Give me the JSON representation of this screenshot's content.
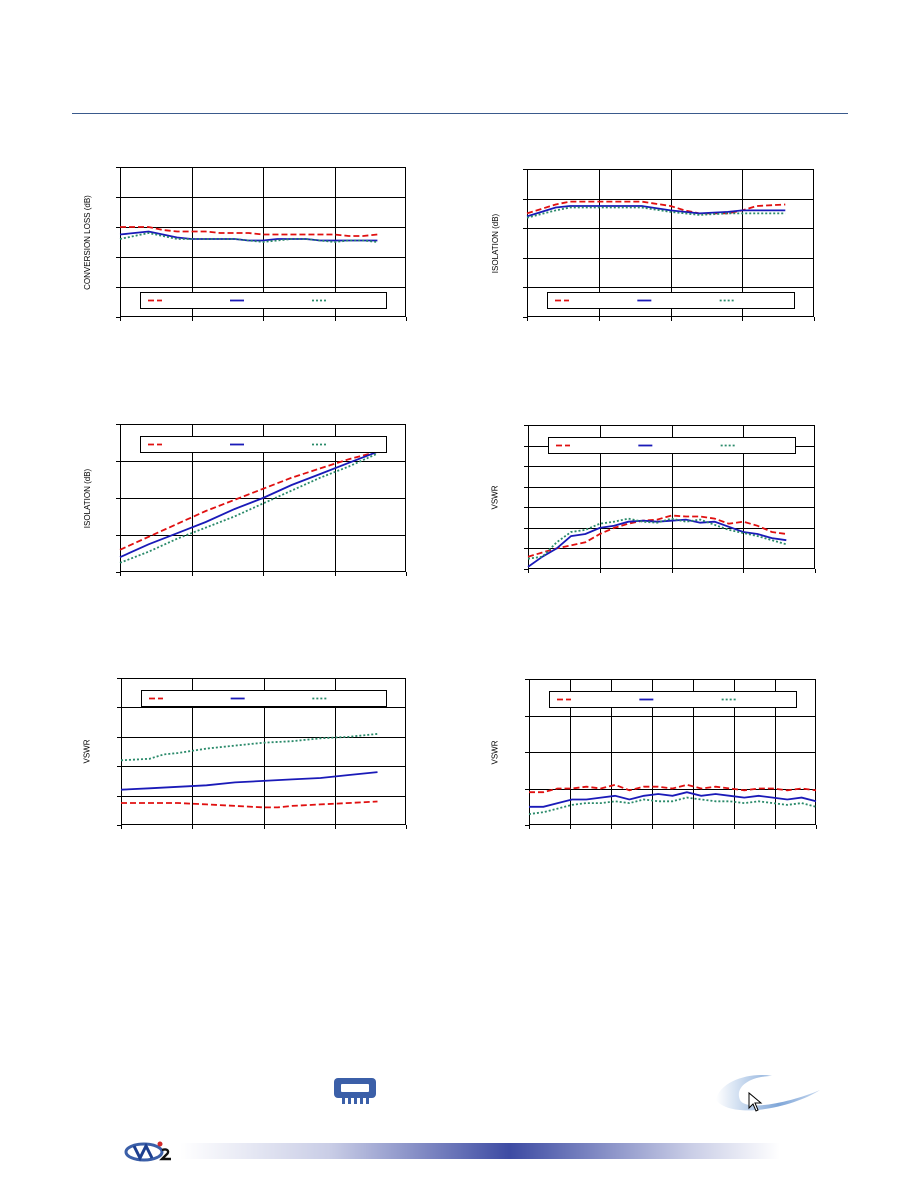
{
  "colors": {
    "red": "#e01010",
    "blue": "#1a1ab8",
    "green": "#2a8a6a",
    "rule": "#3a5a8c",
    "chip": "#3b5fa8"
  },
  "icons": {
    "chip": "chip-icon",
    "swoosh": "swoosh-graphic",
    "cursor": "cursor-icon",
    "logo": "logo-icon"
  },
  "chart_data": [
    {
      "type": "line",
      "ylabel": "CONVERSION LOSS (dB)",
      "y_divisions": 5,
      "x_divisions": 4,
      "legend": "bottom",
      "series": [
        {
          "color": "red",
          "dash": "6,3",
          "x": [
            0,
            0.05,
            0.1,
            0.15,
            0.2,
            0.25,
            0.3,
            0.35,
            0.4,
            0.45,
            0.5,
            0.55,
            0.6,
            0.65,
            0.7,
            0.75,
            0.8,
            0.85,
            0.9
          ],
          "y": [
            3.0,
            3.0,
            3.0,
            2.9,
            2.85,
            2.85,
            2.85,
            2.8,
            2.8,
            2.8,
            2.75,
            2.75,
            2.75,
            2.75,
            2.75,
            2.75,
            2.7,
            2.7,
            2.75
          ]
        },
        {
          "color": "blue",
          "dash": "",
          "x": [
            0,
            0.05,
            0.1,
            0.15,
            0.2,
            0.25,
            0.3,
            0.35,
            0.4,
            0.45,
            0.5,
            0.55,
            0.6,
            0.65,
            0.7,
            0.75,
            0.8,
            0.85,
            0.9
          ],
          "y": [
            2.75,
            2.8,
            2.85,
            2.75,
            2.65,
            2.6,
            2.6,
            2.6,
            2.6,
            2.55,
            2.55,
            2.6,
            2.6,
            2.6,
            2.55,
            2.55,
            2.55,
            2.55,
            2.55
          ]
        },
        {
          "color": "green",
          "dash": "2,2",
          "x": [
            0,
            0.05,
            0.1,
            0.15,
            0.2,
            0.25,
            0.3,
            0.35,
            0.4,
            0.45,
            0.5,
            0.55,
            0.6,
            0.65,
            0.7,
            0.75,
            0.8,
            0.85,
            0.9
          ],
          "y": [
            2.6,
            2.7,
            2.8,
            2.7,
            2.6,
            2.6,
            2.6,
            2.6,
            2.6,
            2.55,
            2.5,
            2.55,
            2.6,
            2.6,
            2.55,
            2.5,
            2.55,
            2.55,
            2.5
          ]
        }
      ]
    },
    {
      "type": "line",
      "ylabel": "ISOLATION (dB)",
      "y_divisions": 5,
      "x_divisions": 4,
      "legend": "bottom",
      "series": [
        {
          "color": "red",
          "dash": "6,3",
          "x": [
            0,
            0.1,
            0.15,
            0.2,
            0.3,
            0.4,
            0.5,
            0.55,
            0.6,
            0.7,
            0.75,
            0.8,
            0.9
          ],
          "y": [
            3.5,
            3.8,
            3.9,
            3.9,
            3.9,
            3.9,
            3.75,
            3.6,
            3.5,
            3.5,
            3.6,
            3.75,
            3.8
          ]
        },
        {
          "color": "blue",
          "dash": "",
          "x": [
            0,
            0.1,
            0.15,
            0.2,
            0.3,
            0.4,
            0.5,
            0.55,
            0.6,
            0.7,
            0.75,
            0.8,
            0.9
          ],
          "y": [
            3.4,
            3.7,
            3.75,
            3.75,
            3.75,
            3.75,
            3.6,
            3.55,
            3.5,
            3.55,
            3.6,
            3.6,
            3.6
          ]
        },
        {
          "color": "green",
          "dash": "2,2",
          "x": [
            0,
            0.1,
            0.15,
            0.2,
            0.3,
            0.4,
            0.5,
            0.55,
            0.6,
            0.7,
            0.75,
            0.8,
            0.9
          ],
          "y": [
            3.35,
            3.6,
            3.7,
            3.7,
            3.7,
            3.7,
            3.55,
            3.5,
            3.45,
            3.5,
            3.5,
            3.5,
            3.5
          ]
        }
      ]
    },
    {
      "type": "line",
      "ylabel": "ISOLATION (dB)",
      "y_divisions": 4,
      "x_divisions": 4,
      "legend": "top",
      "series": [
        {
          "color": "red",
          "dash": "6,3",
          "x": [
            0,
            0.1,
            0.2,
            0.3,
            0.4,
            0.5,
            0.6,
            0.7,
            0.8,
            0.9
          ],
          "y": [
            0.6,
            0.95,
            1.3,
            1.65,
            1.95,
            2.25,
            2.55,
            2.8,
            3.05,
            3.25
          ]
        },
        {
          "color": "blue",
          "dash": "",
          "x": [
            0,
            0.1,
            0.2,
            0.3,
            0.4,
            0.5,
            0.6,
            0.7,
            0.8,
            0.9
          ],
          "y": [
            0.4,
            0.75,
            1.05,
            1.35,
            1.7,
            2.0,
            2.35,
            2.65,
            2.95,
            3.25
          ]
        },
        {
          "color": "green",
          "dash": "2,2",
          "x": [
            0,
            0.1,
            0.2,
            0.3,
            0.4,
            0.5,
            0.6,
            0.7,
            0.8,
            0.9
          ],
          "y": [
            0.25,
            0.55,
            0.9,
            1.2,
            1.5,
            1.85,
            2.2,
            2.55,
            2.85,
            3.2
          ]
        }
      ]
    },
    {
      "type": "line",
      "ylabel": "VSWR",
      "y_divisions": 7,
      "x_divisions": 4,
      "legend": "top",
      "series": [
        {
          "color": "red",
          "dash": "6,3",
          "x": [
            0,
            0.05,
            0.1,
            0.15,
            0.2,
            0.25,
            0.3,
            0.35,
            0.4,
            0.45,
            0.5,
            0.55,
            0.6,
            0.65,
            0.7,
            0.75,
            0.8,
            0.85,
            0.9
          ],
          "y": [
            0.6,
            0.8,
            1.0,
            1.15,
            1.3,
            1.7,
            2.0,
            2.2,
            2.35,
            2.4,
            2.6,
            2.55,
            2.55,
            2.45,
            2.2,
            2.3,
            2.1,
            1.8,
            1.7
          ]
        },
        {
          "color": "blue",
          "dash": "",
          "x": [
            0,
            0.05,
            0.1,
            0.15,
            0.2,
            0.25,
            0.3,
            0.35,
            0.4,
            0.45,
            0.5,
            0.55,
            0.6,
            0.65,
            0.7,
            0.75,
            0.8,
            0.85,
            0.9
          ],
          "y": [
            0.1,
            0.6,
            1.0,
            1.6,
            1.7,
            2.0,
            2.1,
            2.3,
            2.35,
            2.3,
            2.35,
            2.4,
            2.25,
            2.3,
            2.05,
            1.8,
            1.7,
            1.5,
            1.4
          ]
        },
        {
          "color": "green",
          "dash": "2,2",
          "x": [
            0,
            0.05,
            0.1,
            0.15,
            0.2,
            0.25,
            0.3,
            0.35,
            0.4,
            0.45,
            0.5,
            0.55,
            0.6,
            0.65,
            0.7,
            0.75,
            0.8,
            0.85,
            0.9
          ],
          "y": [
            0.5,
            0.6,
            1.3,
            1.8,
            1.9,
            2.2,
            2.3,
            2.45,
            2.3,
            2.25,
            2.45,
            2.3,
            2.4,
            2.15,
            1.9,
            1.75,
            1.6,
            1.4,
            1.2
          ]
        }
      ]
    },
    {
      "type": "line",
      "ylabel": "VSWR",
      "y_divisions": 5,
      "x_divisions": 4,
      "legend": "top",
      "series": [
        {
          "color": "red",
          "dash": "6,3",
          "x": [
            0,
            0.1,
            0.2,
            0.3,
            0.4,
            0.5,
            0.55,
            0.6,
            0.7,
            0.8,
            0.9
          ],
          "y": [
            0.75,
            0.75,
            0.75,
            0.7,
            0.65,
            0.6,
            0.6,
            0.65,
            0.7,
            0.75,
            0.8
          ]
        },
        {
          "color": "blue",
          "dash": "",
          "x": [
            0,
            0.1,
            0.2,
            0.3,
            0.4,
            0.5,
            0.6,
            0.7,
            0.8,
            0.9
          ],
          "y": [
            1.2,
            1.25,
            1.3,
            1.35,
            1.45,
            1.5,
            1.55,
            1.6,
            1.7,
            1.8
          ]
        },
        {
          "color": "green",
          "dash": "2,2",
          "x": [
            0,
            0.1,
            0.15,
            0.2,
            0.3,
            0.4,
            0.5,
            0.6,
            0.7,
            0.8,
            0.9
          ],
          "y": [
            2.2,
            2.25,
            2.4,
            2.45,
            2.6,
            2.7,
            2.8,
            2.85,
            2.95,
            3.0,
            3.1
          ]
        }
      ]
    },
    {
      "type": "line",
      "ylabel": "VSWR",
      "y_divisions": 4,
      "x_divisions": 7,
      "legend": "top",
      "series": [
        {
          "color": "red",
          "dash": "6,3",
          "x": [
            0,
            0.05,
            0.1,
            0.15,
            0.2,
            0.25,
            0.3,
            0.35,
            0.4,
            0.45,
            0.5,
            0.55,
            0.6,
            0.65,
            0.7,
            0.75,
            0.8,
            0.85,
            0.9,
            0.95,
            1.0
          ],
          "y": [
            0.9,
            0.9,
            1.0,
            1.0,
            1.05,
            1.0,
            1.1,
            0.95,
            1.05,
            1.05,
            1.0,
            1.1,
            1.0,
            1.05,
            1.0,
            0.95,
            1.0,
            1.0,
            0.95,
            1.0,
            0.95
          ]
        },
        {
          "color": "blue",
          "dash": "",
          "x": [
            0,
            0.05,
            0.1,
            0.15,
            0.2,
            0.25,
            0.3,
            0.35,
            0.4,
            0.45,
            0.5,
            0.55,
            0.6,
            0.65,
            0.7,
            0.75,
            0.8,
            0.85,
            0.9,
            0.95,
            1.0
          ],
          "y": [
            0.5,
            0.5,
            0.6,
            0.7,
            0.7,
            0.75,
            0.8,
            0.7,
            0.8,
            0.85,
            0.8,
            0.9,
            0.8,
            0.85,
            0.8,
            0.75,
            0.8,
            0.75,
            0.7,
            0.75,
            0.65
          ]
        },
        {
          "color": "green",
          "dash": "2,2",
          "x": [
            0,
            0.05,
            0.1,
            0.15,
            0.2,
            0.25,
            0.3,
            0.35,
            0.4,
            0.45,
            0.5,
            0.55,
            0.6,
            0.65,
            0.7,
            0.75,
            0.8,
            0.85,
            0.9,
            0.95,
            1.0
          ],
          "y": [
            0.3,
            0.35,
            0.45,
            0.55,
            0.6,
            0.6,
            0.65,
            0.6,
            0.7,
            0.65,
            0.65,
            0.75,
            0.7,
            0.65,
            0.65,
            0.6,
            0.65,
            0.6,
            0.55,
            0.6,
            0.5
          ]
        }
      ]
    }
  ]
}
